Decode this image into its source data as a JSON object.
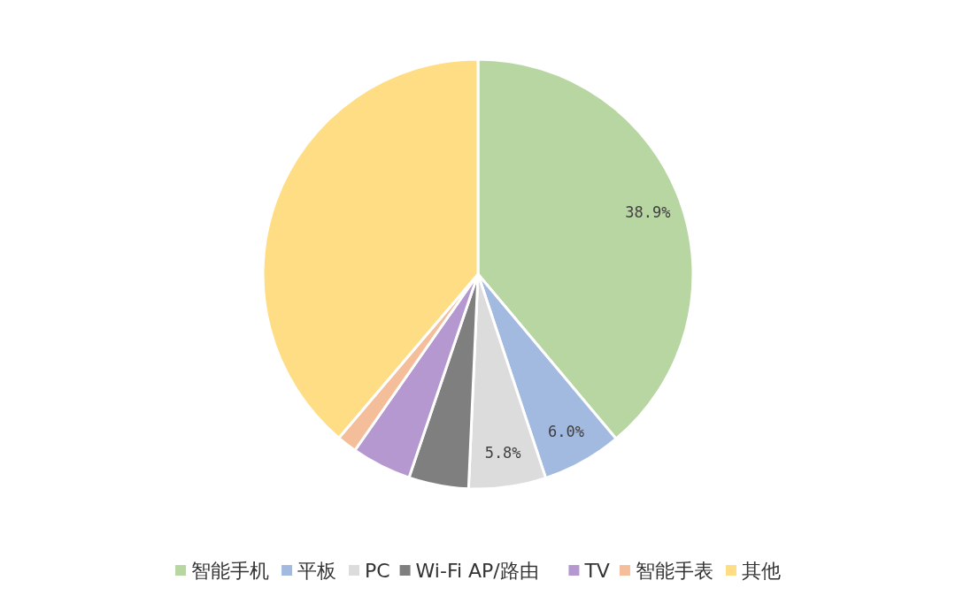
{
  "chart_data": {
    "type": "pie",
    "categories": [
      "智能手机",
      "平板",
      "PC",
      "Wi-Fi AP/路由",
      "TV",
      "智能手表",
      "其他"
    ],
    "values": [
      38.9,
      6.0,
      5.8,
      4.5,
      4.5,
      1.5,
      38.8
    ],
    "colors": [
      "#b8d6a2",
      "#a2b9e0",
      "#dcdcdc",
      "#7f7f7f",
      "#b598cf",
      "#f5be9a",
      "#fedd84"
    ],
    "value_labels": [
      "38.9%",
      "6.0%",
      "5.8%",
      null,
      null,
      null,
      null
    ],
    "legend": "bottom"
  }
}
